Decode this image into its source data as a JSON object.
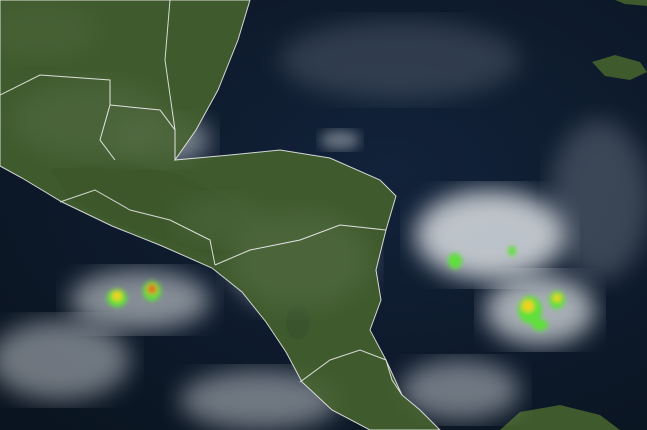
{
  "map": {
    "type": "satellite-imagery",
    "colors": {
      "ocean": "#0d1a2b",
      "land": "#3f5a2c",
      "land_dark": "#2f4522",
      "cloud": "#e8ecef",
      "border": "#f2f2f2",
      "storm_low": "#5fe03a",
      "storm_high": "#f2d21e",
      "storm_peak": "#e86a1c"
    }
  }
}
